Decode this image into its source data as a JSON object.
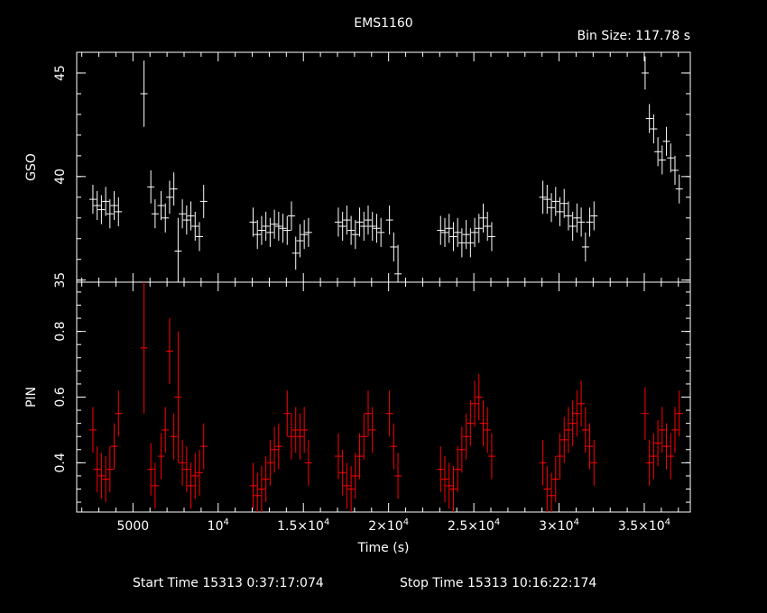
{
  "title": "EMS1160",
  "bin_size_label": "Bin Size:  117.78  s",
  "footer": {
    "start_label": "Start Time 15313  0:37:17:074",
    "stop_label": "Stop Time 15313 10:16:22:174"
  },
  "chart_data": {
    "type": "scatter",
    "xlabel": "Time (s)",
    "xlim": [
      1700,
      37700
    ],
    "x_ticks": [
      {
        "value": 5000,
        "label": "5000",
        "exp": ""
      },
      {
        "value": 10000,
        "label": "10",
        "exp": "4"
      },
      {
        "value": 15000,
        "label": "1.5×10",
        "exp": "4"
      },
      {
        "value": 20000,
        "label": "2×10",
        "exp": "4"
      },
      {
        "value": 25000,
        "label": "2.5×10",
        "exp": "4"
      },
      {
        "value": 30000,
        "label": "3×10",
        "exp": "4"
      },
      {
        "value": 35000,
        "label": "3.5×10",
        "exp": "4"
      }
    ],
    "panels": [
      {
        "name": "GSO",
        "ylabel": "GSO",
        "ylim": [
          34.9,
          46.0
        ],
        "y_ticks": [
          {
            "value": 35,
            "label": "35"
          },
          {
            "value": 40,
            "label": "40"
          },
          {
            "value": 45,
            "label": "45"
          }
        ],
        "color": "#ffffff",
        "series": [
          {
            "name": "GSO",
            "x": [
              2650,
              2900,
              3150,
              3400,
              3650,
              3900,
              4150,
              5650,
              6050,
              6300,
              6650,
              6900,
              7150,
              7400,
              7650,
              7900,
              8150,
              8400,
              8650,
              8900,
              9150,
              12050,
              12300,
              12550,
              12800,
              13050,
              13300,
              13550,
              13800,
              14050,
              14300,
              14550,
              14800,
              15050,
              15300,
              17050,
              17300,
              17550,
              17800,
              18050,
              18300,
              18550,
              18800,
              19050,
              19300,
              19550,
              20050,
              20300,
              20550,
              23050,
              23300,
              23550,
              23800,
              24050,
              24300,
              24550,
              24800,
              25050,
              25300,
              25550,
              25800,
              26050,
              29050,
              29300,
              29550,
              29800,
              30050,
              30300,
              30550,
              30800,
              31050,
              31300,
              31550,
              31800,
              32050,
              35050,
              35300,
              35550,
              35800,
              36050,
              36300,
              36550,
              36800,
              37050
            ],
            "y": [
              38.9,
              38.6,
              38.4,
              38.8,
              38.2,
              38.6,
              38.3,
              44.0,
              39.5,
              38.2,
              38.6,
              38.0,
              39.0,
              39.4,
              36.4,
              38.2,
              37.9,
              38.1,
              37.6,
              37.1,
              38.8,
              37.8,
              37.2,
              37.4,
              37.6,
              37.3,
              37.7,
              37.6,
              37.5,
              37.4,
              38.1,
              36.3,
              36.9,
              37.2,
              37.3,
              37.8,
              37.6,
              37.9,
              37.4,
              37.2,
              37.8,
              37.6,
              37.9,
              37.6,
              37.5,
              37.3,
              37.9,
              36.6,
              35.3,
              37.4,
              37.3,
              37.5,
              37.1,
              37.3,
              36.8,
              37.2,
              36.8,
              37.3,
              37.5,
              38.0,
              37.6,
              37.1,
              39.0,
              38.9,
              38.5,
              38.8,
              38.3,
              38.7,
              38.1,
              37.6,
              38.0,
              37.8,
              36.6,
              37.8,
              38.1,
              45.0,
              42.8,
              42.3,
              41.2,
              40.8,
              41.7,
              40.9,
              40.3,
              39.4
            ],
            "err": [
              0.7,
              0.7,
              0.7,
              0.7,
              0.7,
              0.7,
              0.7,
              1.6,
              0.8,
              0.7,
              0.7,
              0.7,
              0.8,
              0.8,
              1.6,
              0.7,
              0.7,
              0.7,
              0.7,
              0.7,
              0.8,
              0.7,
              0.7,
              0.7,
              0.7,
              0.7,
              0.7,
              0.7,
              0.7,
              0.7,
              0.7,
              0.8,
              0.8,
              0.7,
              0.7,
              0.7,
              0.7,
              0.7,
              0.7,
              0.7,
              0.7,
              0.7,
              0.7,
              0.7,
              0.7,
              0.7,
              0.7,
              0.7,
              1.4,
              0.7,
              0.7,
              0.7,
              0.7,
              0.7,
              0.7,
              0.7,
              0.7,
              0.7,
              0.7,
              0.7,
              0.7,
              0.7,
              0.8,
              0.7,
              0.7,
              0.7,
              0.7,
              0.7,
              0.7,
              0.7,
              0.7,
              0.7,
              0.7,
              0.7,
              0.7,
              0.8,
              0.7,
              0.7,
              0.7,
              0.7,
              0.7,
              0.7,
              0.7,
              0.7
            ]
          }
        ]
      },
      {
        "name": "PIN",
        "ylabel": "PIN",
        "ylim": [
          0.25,
          0.95
        ],
        "y_ticks": [
          {
            "value": 0.4,
            "label": "0.4"
          },
          {
            "value": 0.6,
            "label": "0.6"
          },
          {
            "value": 0.8,
            "label": "0.8"
          }
        ],
        "color": "#ff0000",
        "series": [
          {
            "name": "PIN",
            "x": [
              2650,
              2900,
              3150,
              3400,
              3650,
              3900,
              4150,
              5650,
              6050,
              6300,
              6650,
              6900,
              7150,
              7400,
              7650,
              7900,
              8150,
              8400,
              8650,
              8900,
              9150,
              12050,
              12300,
              12550,
              12800,
              13050,
              13300,
              13550,
              14050,
              14300,
              14550,
              14800,
              15050,
              15300,
              17050,
              17300,
              17550,
              17800,
              18050,
              18300,
              18550,
              18800,
              19050,
              20050,
              20300,
              20550,
              23050,
              23300,
              23550,
              23800,
              24050,
              24300,
              24550,
              24800,
              25050,
              25300,
              25550,
              25800,
              26050,
              29050,
              29300,
              29550,
              29800,
              30050,
              30300,
              30550,
              30800,
              31050,
              31300,
              31550,
              31800,
              32050,
              35050,
              35300,
              35550,
              35800,
              36050,
              36300,
              36550,
              36800,
              37050
            ],
            "y": [
              0.5,
              0.38,
              0.36,
              0.35,
              0.38,
              0.45,
              0.55,
              0.75,
              0.38,
              0.33,
              0.42,
              0.5,
              0.74,
              0.48,
              0.6,
              0.4,
              0.38,
              0.33,
              0.36,
              0.37,
              0.45,
              0.33,
              0.3,
              0.32,
              0.35,
              0.4,
              0.44,
              0.45,
              0.55,
              0.48,
              0.5,
              0.48,
              0.5,
              0.4,
              0.42,
              0.37,
              0.33,
              0.32,
              0.36,
              0.42,
              0.48,
              0.55,
              0.5,
              0.55,
              0.45,
              0.36,
              0.38,
              0.35,
              0.33,
              0.32,
              0.38,
              0.44,
              0.48,
              0.52,
              0.58,
              0.6,
              0.52,
              0.5,
              0.42,
              0.4,
              0.32,
              0.3,
              0.35,
              0.42,
              0.47,
              0.5,
              0.52,
              0.55,
              0.58,
              0.5,
              0.45,
              0.4,
              0.55,
              0.4,
              0.42,
              0.46,
              0.5,
              0.45,
              0.42,
              0.5,
              0.55
            ],
            "err": [
              0.07,
              0.07,
              0.07,
              0.07,
              0.07,
              0.07,
              0.07,
              0.2,
              0.08,
              0.07,
              0.07,
              0.07,
              0.1,
              0.07,
              0.2,
              0.07,
              0.07,
              0.07,
              0.07,
              0.07,
              0.07,
              0.07,
              0.07,
              0.07,
              0.07,
              0.07,
              0.07,
              0.07,
              0.07,
              0.07,
              0.07,
              0.07,
              0.07,
              0.07,
              0.07,
              0.07,
              0.07,
              0.07,
              0.07,
              0.07,
              0.07,
              0.07,
              0.07,
              0.07,
              0.07,
              0.07,
              0.07,
              0.07,
              0.07,
              0.07,
              0.07,
              0.07,
              0.07,
              0.07,
              0.07,
              0.07,
              0.07,
              0.07,
              0.07,
              0.07,
              0.07,
              0.07,
              0.07,
              0.07,
              0.07,
              0.07,
              0.07,
              0.07,
              0.07,
              0.07,
              0.07,
              0.07,
              0.08,
              0.07,
              0.07,
              0.07,
              0.07,
              0.07,
              0.07,
              0.07,
              0.07
            ]
          }
        ]
      }
    ]
  }
}
